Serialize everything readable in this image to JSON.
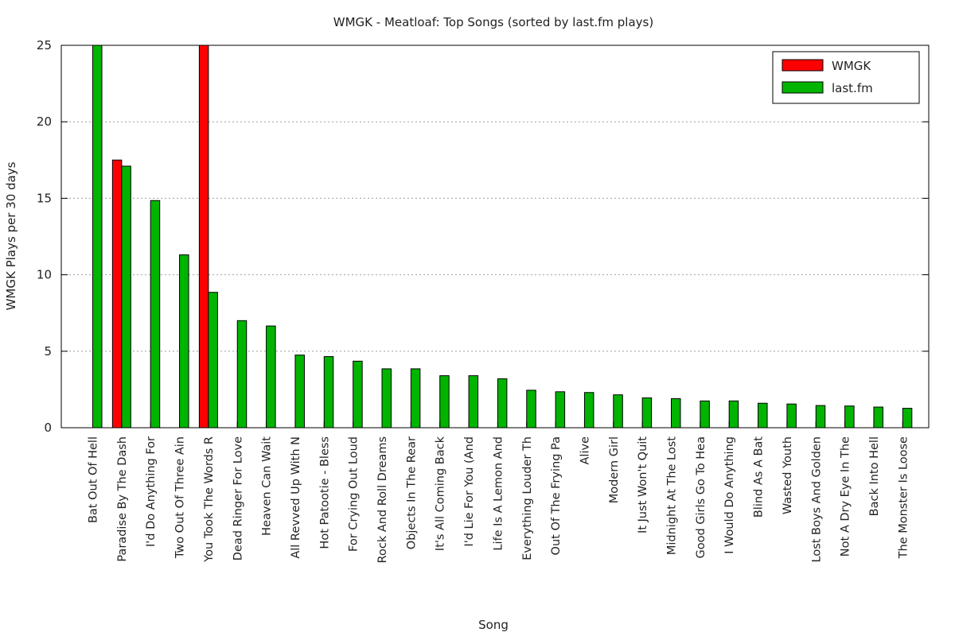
{
  "chart_data": {
    "type": "bar",
    "title": "WMGK - Meatloaf: Top Songs (sorted by last.fm plays)",
    "xlabel": "Song",
    "ylabel": "WMGK Plays per 30 days",
    "ylim": [
      0,
      25
    ],
    "yticks": [
      "0",
      "5",
      "10",
      "15",
      "20",
      "25"
    ],
    "grid": "horizontal dotted",
    "legend_position": "top-right",
    "categories": [
      "Bat Out Of Hell",
      "Paradise By The Dash",
      "I'd Do Anything For",
      "Two Out Of Three Ain",
      "You Took The Words R",
      "Dead Ringer For Love",
      "Heaven Can Wait",
      "All Revved Up With N",
      "Hot Patootie - Bless",
      "For Crying Out Loud",
      "Rock And Roll Dreams",
      "Objects In The Rear",
      "It's All Coming Back",
      "I'd Lie For You (And",
      "Life Is A Lemon And",
      "Everything Louder Th",
      "Out Of The Frying Pa",
      "Alive",
      "Modern Girl",
      "It Just Won't Quit",
      "Midnight At The Lost",
      "Good Girls Go To Hea",
      "I Would Do Anything",
      "Blind As A Bat",
      "Wasted Youth",
      "Lost Boys And Golden",
      "Not A Dry Eye In The",
      "Back Into Hell",
      "The Monster Is Loose"
    ],
    "series": [
      {
        "name": "WMGK",
        "color": "#ff0000",
        "values": [
          0,
          17.5,
          0,
          0,
          25,
          0,
          0,
          0,
          0,
          0,
          0,
          0,
          0,
          0,
          0,
          0,
          0,
          0,
          0,
          0,
          0,
          0,
          0,
          0,
          0,
          0,
          0,
          0,
          0
        ]
      },
      {
        "name": "last.fm",
        "color": "#00b400",
        "values": [
          25,
          17.1,
          14.85,
          11.3,
          8.85,
          7.0,
          6.65,
          4.75,
          4.65,
          4.35,
          3.85,
          3.85,
          3.4,
          3.4,
          3.2,
          2.45,
          2.35,
          2.3,
          2.15,
          1.95,
          1.9,
          1.75,
          1.75,
          1.6,
          1.55,
          1.45,
          1.42,
          1.35,
          1.27
        ]
      }
    ]
  }
}
